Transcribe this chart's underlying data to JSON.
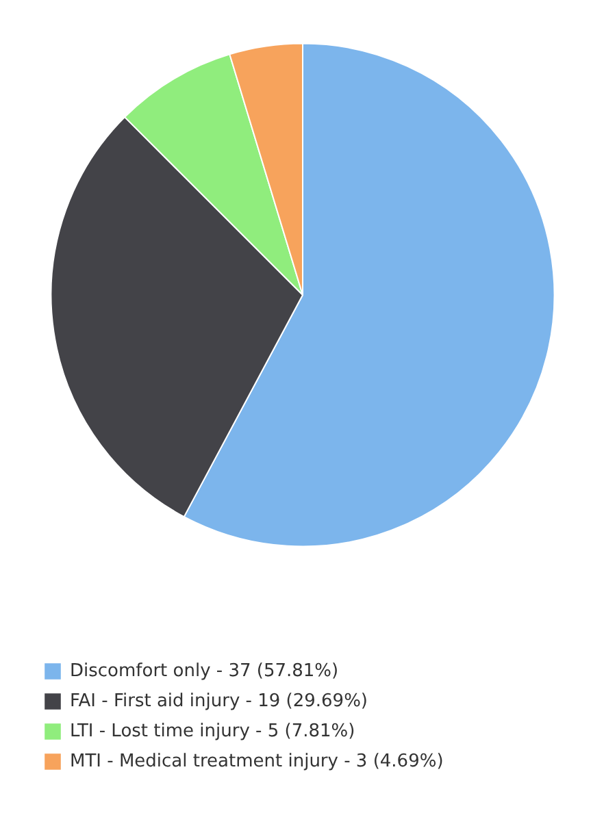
{
  "chart_data": {
    "type": "pie",
    "categories": [
      "Discomfort only",
      "FAI - First aid injury",
      "LTI - Lost time injury",
      "MTI - Medical treatment injury"
    ],
    "values": [
      37,
      19,
      5,
      3
    ],
    "value_labels": [
      "37 (57.81%)",
      "19 (29.69%)",
      "5 (7.81%)",
      "3 (4.69%)"
    ],
    "colors": [
      "#7cb5ec",
      "#434348",
      "#90ed7d",
      "#f7a35c"
    ],
    "legend": "bottom"
  }
}
